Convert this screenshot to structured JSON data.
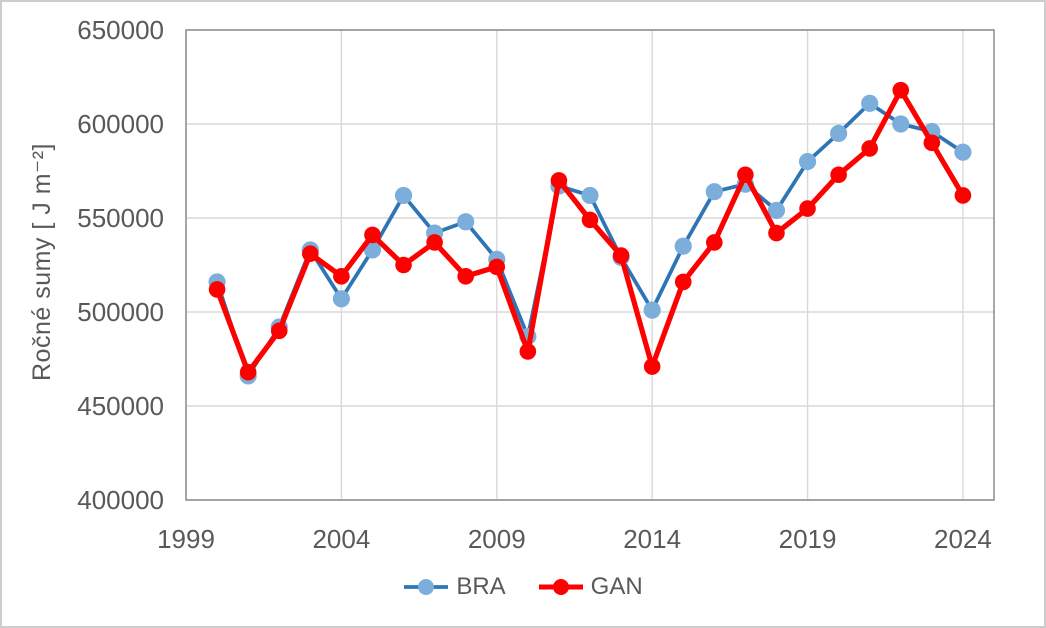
{
  "chart_data": {
    "type": "line",
    "title": "",
    "xlabel": "",
    "ylabel": "Ročné sumy [ J m⁻²]",
    "x": [
      2000,
      2001,
      2002,
      2003,
      2004,
      2005,
      2006,
      2007,
      2008,
      2009,
      2010,
      2011,
      2012,
      2013,
      2014,
      2015,
      2016,
      2017,
      2018,
      2019,
      2020,
      2021,
      2022,
      2023,
      2024
    ],
    "series": [
      {
        "name": "BRA",
        "line_color": "#2E75B6",
        "marker_color": "#7CAEDC",
        "line_width": 3.75,
        "marker_radius": 8.6,
        "values": [
          516000,
          466000,
          492000,
          533000,
          507000,
          533000,
          562000,
          542000,
          548000,
          528000,
          487000,
          567000,
          562000,
          529000,
          501000,
          535000,
          564000,
          568000,
          554000,
          580000,
          595000,
          611000,
          600000,
          596000,
          585000
        ]
      },
      {
        "name": "GAN",
        "line_color": "#FF0000",
        "marker_color": "#FF0000",
        "line_width": 5.2,
        "marker_radius": 8.3,
        "values": [
          512000,
          468000,
          490000,
          531000,
          519000,
          541000,
          525000,
          537000,
          519000,
          524000,
          479000,
          570000,
          549000,
          530000,
          471000,
          516000,
          537000,
          573000,
          542000,
          555000,
          573000,
          587000,
          618000,
          590000,
          562000
        ]
      }
    ],
    "xlim": [
      1999,
      2025
    ],
    "ylim": [
      400000,
      650000
    ],
    "x_ticks": [
      1999,
      2004,
      2009,
      2014,
      2019,
      2024
    ],
    "y_ticks": [
      400000,
      450000,
      500000,
      550000,
      600000,
      650000
    ],
    "grid": true,
    "legend_position": "bottom",
    "colors": {
      "grid": "#D9D9D9",
      "plot_border": "#8C8C8C",
      "text": "#595959",
      "canvas_border": "#CDCDCD"
    }
  }
}
